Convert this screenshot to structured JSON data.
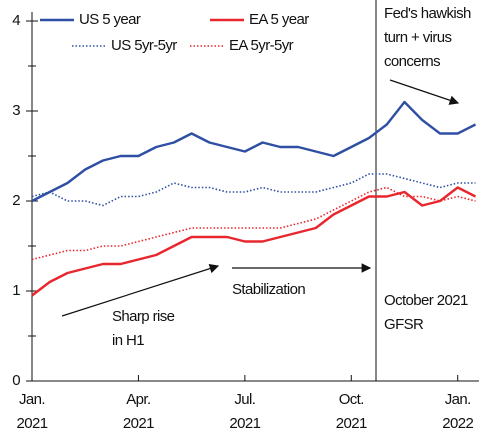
{
  "chart_data": {
    "type": "line",
    "x": [
      0,
      0.5,
      1,
      1.5,
      2,
      2.5,
      3,
      3.5,
      4,
      4.5,
      5,
      5.5,
      6,
      6.5,
      7,
      7.5,
      8,
      8.5,
      9,
      9.5,
      10,
      10.5,
      11,
      11.5,
      12,
      12.5
    ],
    "series": [
      {
        "name": "US 5 year",
        "color": "#2e4fa3",
        "style": "solid",
        "values": [
          2.0,
          2.1,
          2.2,
          2.35,
          2.45,
          2.5,
          2.5,
          2.6,
          2.65,
          2.75,
          2.65,
          2.6,
          2.55,
          2.65,
          2.6,
          2.6,
          2.55,
          2.5,
          2.6,
          2.7,
          2.85,
          3.1,
          2.9,
          2.75,
          2.75,
          2.85
        ]
      },
      {
        "name": "EA 5 year",
        "color": "#e8262d",
        "style": "solid",
        "values": [
          0.95,
          1.1,
          1.2,
          1.25,
          1.3,
          1.3,
          1.35,
          1.4,
          1.5,
          1.6,
          1.6,
          1.6,
          1.55,
          1.55,
          1.6,
          1.65,
          1.7,
          1.85,
          1.95,
          2.05,
          2.05,
          2.1,
          1.95,
          2.0,
          2.15,
          2.05
        ]
      },
      {
        "name": "US 5yr-5yr",
        "color": "#2e4fa3",
        "style": "dotted",
        "values": [
          2.05,
          2.1,
          2.0,
          2.0,
          1.95,
          2.05,
          2.05,
          2.1,
          2.2,
          2.15,
          2.15,
          2.1,
          2.1,
          2.15,
          2.1,
          2.1,
          2.1,
          2.15,
          2.2,
          2.3,
          2.3,
          2.25,
          2.2,
          2.15,
          2.2,
          2.2
        ]
      },
      {
        "name": "EA 5yr-5yr",
        "color": "#e8262d",
        "style": "dotted",
        "values": [
          1.35,
          1.4,
          1.45,
          1.45,
          1.5,
          1.5,
          1.55,
          1.6,
          1.65,
          1.7,
          1.7,
          1.7,
          1.7,
          1.7,
          1.7,
          1.75,
          1.8,
          1.9,
          2.0,
          2.1,
          2.15,
          2.05,
          2.05,
          2.0,
          2.05,
          2.0
        ]
      }
    ],
    "xlim": [
      0,
      12.6
    ],
    "xticks": [
      {
        "value": 0,
        "label": "Jan.\n2021"
      },
      {
        "value": 3,
        "label": "Apr.\n2021"
      },
      {
        "value": 6,
        "label": "Jul.\n2021"
      },
      {
        "value": 9,
        "label": "Oct.\n2021"
      },
      {
        "value": 12,
        "label": "Jan.\n2022"
      }
    ],
    "ylim": [
      0,
      4.1
    ],
    "yticks": [
      0,
      1,
      2,
      3,
      4
    ],
    "minor_yticks": [
      0.5,
      1.5,
      2.5,
      3.5
    ],
    "annotations": {
      "fed": "Fed's hawkish\nturn + virus\nconcerns",
      "sharp": "Sharp rise\nin H1",
      "stab": "Stabilization",
      "gfsr": "October 2021\nGFSR"
    }
  }
}
